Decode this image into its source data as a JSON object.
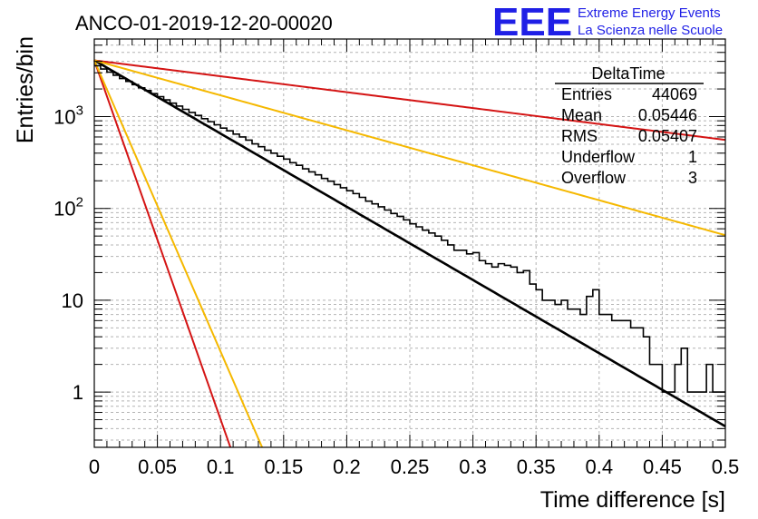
{
  "chart_data": {
    "type": "histogram",
    "title": "ANCO-01-2019-12-20-00020",
    "xlabel": "Time difference [s]",
    "ylabel": "Entries/bin",
    "xlim": [
      0,
      0.5
    ],
    "ylim": [
      0.25,
      7000
    ],
    "yscale": "log",
    "grid": true,
    "x_tick_labels": [
      "0",
      "0.05",
      "0.1",
      "0.15",
      "0.2",
      "0.25",
      "0.3",
      "0.35",
      "0.4",
      "0.45",
      "0.5"
    ],
    "y_tick_labels": [
      "1",
      "10",
      "10^2",
      "10^3"
    ],
    "bin_width": 0.005,
    "bin_counts": [
      3580,
      3300,
      3050,
      2820,
      2600,
      2420,
      2230,
      2060,
      1920,
      1780,
      1650,
      1520,
      1400,
      1300,
      1200,
      1110,
      1030,
      950,
      880,
      815,
      750,
      700,
      645,
      600,
      555,
      505,
      470,
      430,
      400,
      370,
      345,
      315,
      295,
      270,
      250,
      232,
      212,
      198,
      182,
      168,
      156,
      145,
      132,
      120,
      112,
      104,
      96,
      88,
      82,
      75,
      68,
      63,
      58,
      54,
      50,
      45,
      40,
      35,
      35,
      32,
      33,
      27,
      25,
      23,
      25,
      24,
      23,
      20,
      21,
      15,
      13,
      10,
      10,
      9,
      10,
      8,
      8,
      7,
      11,
      13,
      7,
      7,
      6,
      6,
      6,
      5,
      5,
      4,
      2,
      2,
      1,
      1,
      2,
      3,
      1,
      1,
      1,
      2,
      1,
      1
    ],
    "fits": [
      {
        "name": "exponential fit",
        "color": "#000000",
        "y0": 4100,
        "slope_per_s": -18.36
      },
      {
        "name": "reference slow red",
        "color": "#d41414",
        "y0": 4100,
        "slope_per_s": -3.99
      },
      {
        "name": "reference slow orange",
        "color": "#f5b800",
        "y0": 4100,
        "slope_per_s": -8.77
      },
      {
        "name": "reference fast red",
        "color": "#d41414",
        "y0": 4100,
        "slope_per_s": -90.0
      },
      {
        "name": "reference fast orange",
        "color": "#f5b800",
        "y0": 4100,
        "slope_per_s": -73.0
      }
    ],
    "stats": {
      "title": "DeltaTime",
      "rows": [
        {
          "label": "Entries",
          "value": "44069"
        },
        {
          "label": "Mean",
          "value": "0.05446"
        },
        {
          "label": "RMS",
          "value": "0.05407"
        },
        {
          "label": "Underflow",
          "value": "1"
        },
        {
          "label": "Overflow",
          "value": "3"
        }
      ]
    }
  },
  "logo": {
    "mark": "EEE",
    "line1": "Extreme Energy Events",
    "line2": "La Scienza nelle Scuole",
    "color": "#1f1fe6"
  }
}
